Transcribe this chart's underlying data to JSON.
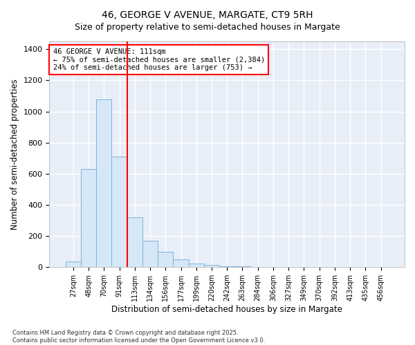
{
  "title": "46, GEORGE V AVENUE, MARGATE, CT9 5RH",
  "subtitle": "Size of property relative to semi-detached houses in Margate",
  "xlabel": "Distribution of semi-detached houses by size in Margate",
  "ylabel": "Number of semi-detached properties",
  "categories": [
    "27sqm",
    "48sqm",
    "70sqm",
    "91sqm",
    "113sqm",
    "134sqm",
    "156sqm",
    "177sqm",
    "199sqm",
    "220sqm",
    "242sqm",
    "263sqm",
    "284sqm",
    "306sqm",
    "327sqm",
    "349sqm",
    "370sqm",
    "392sqm",
    "413sqm",
    "435sqm",
    "456sqm"
  ],
  "values": [
    35,
    630,
    1080,
    710,
    320,
    170,
    100,
    50,
    25,
    15,
    8,
    5,
    0,
    0,
    0,
    0,
    0,
    0,
    0,
    0,
    0
  ],
  "bar_color": "#d6e8f7",
  "bar_edge_color": "#7ab3d9",
  "vline_color": "red",
  "vline_x_index": 4,
  "annotation_text": "46 GEORGE V AVENUE: 111sqm\n← 75% of semi-detached houses are smaller (2,384)\n24% of semi-detached houses are larger (753) →",
  "annotation_box_facecolor": "white",
  "annotation_box_edgecolor": "red",
  "ylim": [
    0,
    1450
  ],
  "yticks": [
    0,
    200,
    400,
    600,
    800,
    1000,
    1200,
    1400
  ],
  "title_fontsize": 10,
  "xlabel_fontsize": 8.5,
  "ylabel_fontsize": 8.5,
  "tick_fontsize": 8,
  "annotation_fontsize": 7.5,
  "footer_line1": "Contains HM Land Registry data © Crown copyright and database right 2025.",
  "footer_line2": "Contains public sector information licensed under the Open Government Licence v3.0.",
  "background_color": "#ffffff",
  "plot_bg_color": "#e8eef8",
  "grid_color": "#ffffff",
  "spine_color": "#aaaaaa"
}
